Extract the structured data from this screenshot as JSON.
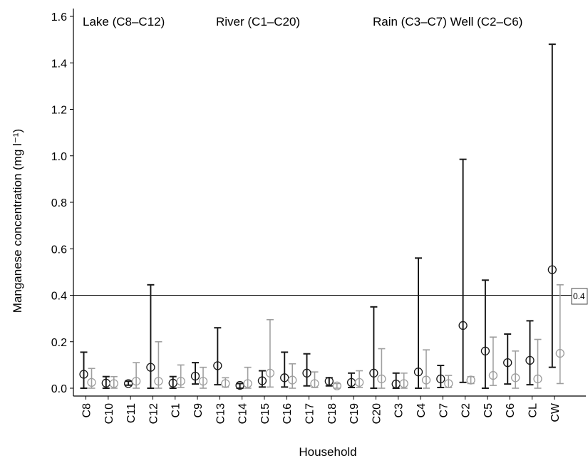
{
  "chart_data": {
    "type": "scatter",
    "xlabel": "Household",
    "ylabel": "Manganese concentration (mg l⁻¹)",
    "ylim": [
      0,
      1.6
    ],
    "yticks": [
      "0.0",
      "0.2",
      "0.4",
      "0.6",
      "0.8",
      "1.0",
      "1.2",
      "1.4",
      "1.6"
    ],
    "categories": [
      "C8",
      "C10",
      "C11",
      "C12",
      "C1",
      "C9",
      "C13",
      "C14",
      "C15",
      "C16",
      "C17",
      "C18",
      "C19",
      "C20",
      "C3",
      "C4",
      "C7",
      "C2",
      "C5",
      "C6",
      "CL",
      "CW"
    ],
    "group_labels": [
      "Lake (C8–C12)",
      "River (C1–C20)",
      "Rain (C3–C7) Well (C2–C6)"
    ],
    "reference_line": {
      "value": 0.4,
      "label": "0.4"
    },
    "series": [
      {
        "color": "#1a1a1a",
        "points": [
          {
            "mean": 0.06,
            "low": 0.0,
            "high": 0.155
          },
          {
            "mean": 0.022,
            "low": 0.0,
            "high": 0.05
          },
          {
            "mean": 0.02,
            "low": 0.013,
            "high": 0.03
          },
          {
            "mean": 0.09,
            "low": 0.0,
            "high": 0.445
          },
          {
            "mean": 0.022,
            "low": 0.0,
            "high": 0.05
          },
          {
            "mean": 0.052,
            "low": 0.018,
            "high": 0.11
          },
          {
            "mean": 0.097,
            "low": 0.015,
            "high": 0.26
          },
          {
            "mean": 0.012,
            "low": 0.0,
            "high": 0.02
          },
          {
            "mean": 0.032,
            "low": 0.005,
            "high": 0.075
          },
          {
            "mean": 0.045,
            "low": 0.005,
            "high": 0.155
          },
          {
            "mean": 0.065,
            "low": 0.01,
            "high": 0.148
          },
          {
            "mean": 0.03,
            "low": 0.01,
            "high": 0.045
          },
          {
            "mean": 0.025,
            "low": 0.003,
            "high": 0.065
          },
          {
            "mean": 0.065,
            "low": 0.0,
            "high": 0.35
          },
          {
            "mean": 0.018,
            "low": 0.0,
            "high": 0.065
          },
          {
            "mean": 0.07,
            "low": 0.0,
            "high": 0.56
          },
          {
            "mean": 0.04,
            "low": 0.003,
            "high": 0.098
          },
          {
            "mean": 0.27,
            "low": 0.025,
            "high": 0.985
          },
          {
            "mean": 0.16,
            "low": 0.0,
            "high": 0.465
          },
          {
            "mean": 0.11,
            "low": 0.018,
            "high": 0.233
          },
          {
            "mean": 0.12,
            "low": 0.015,
            "high": 0.29
          },
          {
            "mean": 0.51,
            "low": 0.09,
            "high": 1.48
          }
        ]
      },
      {
        "color": "#9e9e9e",
        "points": [
          {
            "mean": 0.025,
            "low": 0.0,
            "high": 0.085
          },
          {
            "mean": 0.02,
            "low": 0.0,
            "high": 0.05
          },
          {
            "mean": 0.03,
            "low": 0.0,
            "high": 0.11
          },
          {
            "mean": 0.03,
            "low": 0.0,
            "high": 0.2
          },
          {
            "mean": 0.03,
            "low": 0.003,
            "high": 0.1
          },
          {
            "mean": 0.03,
            "low": 0.0,
            "high": 0.09
          },
          {
            "mean": 0.02,
            "low": 0.005,
            "high": 0.045
          },
          {
            "mean": 0.02,
            "low": 0.0,
            "high": 0.09
          },
          {
            "mean": 0.065,
            "low": 0.005,
            "high": 0.295
          },
          {
            "mean": 0.035,
            "low": 0.0,
            "high": 0.105
          },
          {
            "mean": 0.02,
            "low": 0.003,
            "high": 0.07
          },
          {
            "mean": 0.01,
            "low": 0.0,
            "high": 0.02
          },
          {
            "mean": 0.025,
            "low": 0.003,
            "high": 0.075
          },
          {
            "mean": 0.04,
            "low": 0.0,
            "high": 0.17
          },
          {
            "mean": 0.02,
            "low": 0.0,
            "high": 0.065
          },
          {
            "mean": 0.035,
            "low": 0.0,
            "high": 0.165
          },
          {
            "mean": 0.02,
            "low": 0.003,
            "high": 0.055
          },
          {
            "mean": 0.035,
            "low": 0.02,
            "high": 0.05
          },
          {
            "mean": 0.055,
            "low": 0.012,
            "high": 0.22
          },
          {
            "mean": 0.045,
            "low": 0.0,
            "high": 0.16
          },
          {
            "mean": 0.04,
            "low": 0.0,
            "high": 0.21
          },
          {
            "mean": 0.15,
            "low": 0.02,
            "high": 0.445
          }
        ]
      }
    ]
  }
}
